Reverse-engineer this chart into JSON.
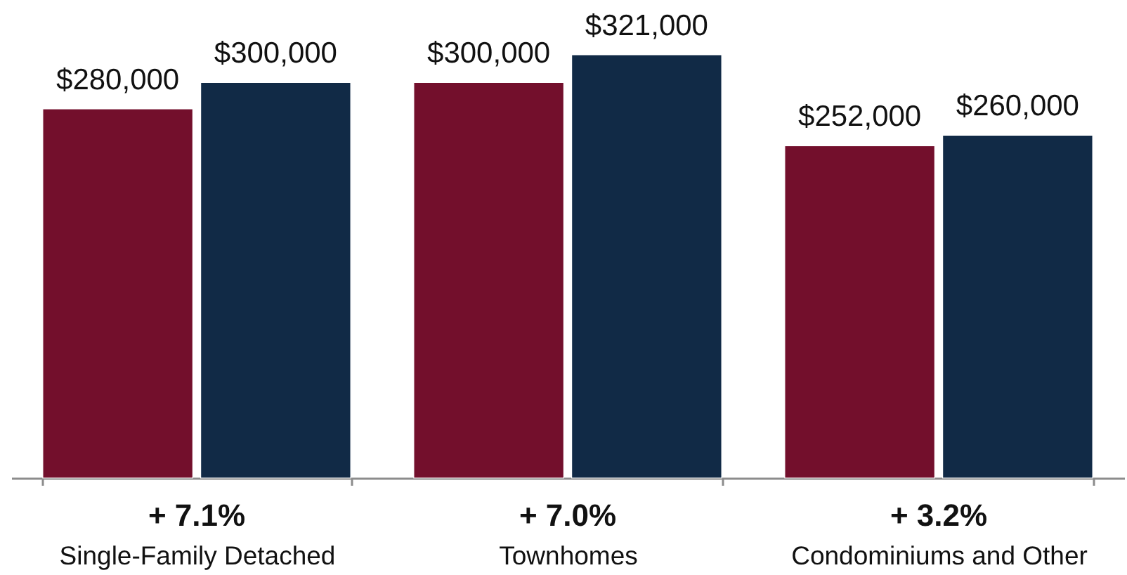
{
  "chart_data": {
    "type": "bar",
    "categories": [
      "Single-Family Detached",
      "Townhomes",
      "Condominiums and Other"
    ],
    "series": [
      {
        "color": "#730f2c",
        "values": [
          280000,
          300000,
          252000
        ],
        "value_labels": [
          "$280,000",
          "$300,000",
          "$252,000"
        ]
      },
      {
        "color": "#112a46",
        "values": [
          300000,
          321000,
          260000
        ],
        "value_labels": [
          "$300,000",
          "$321,000",
          "$260,000"
        ]
      }
    ],
    "annotations": [
      "+ 7.1%",
      "+ 7.0%",
      "+ 3.2%"
    ],
    "grid": false,
    "legend": false
  }
}
